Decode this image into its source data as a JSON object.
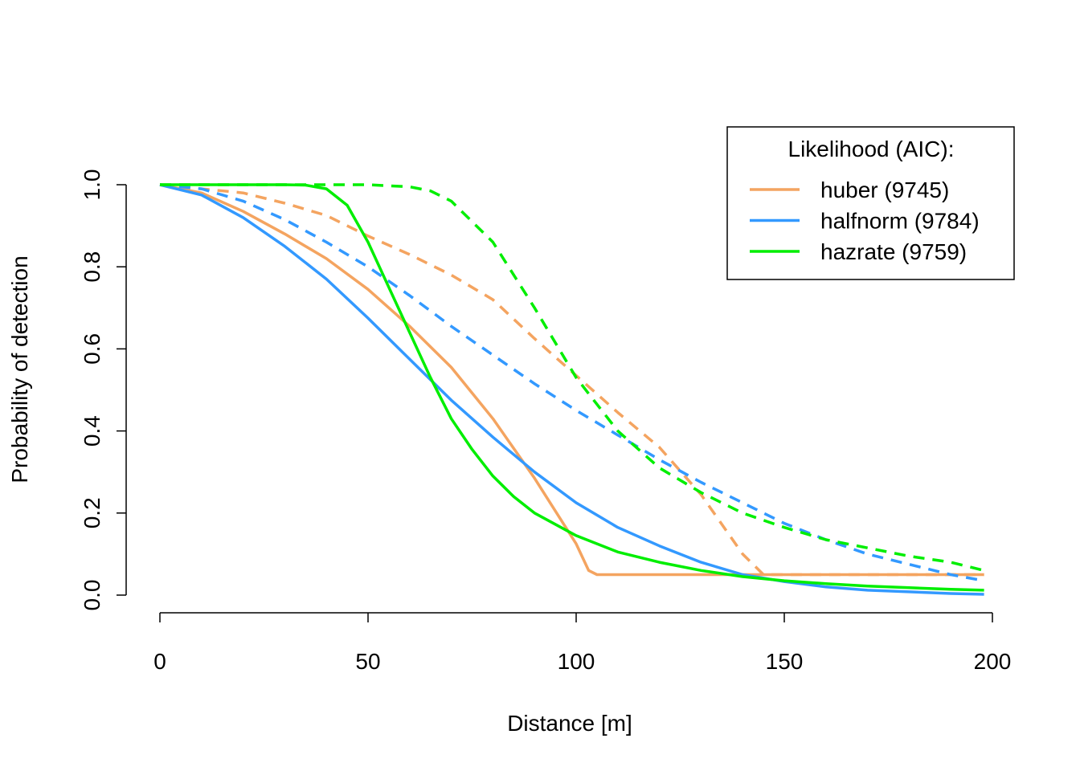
{
  "chart_data": {
    "type": "line",
    "title": "",
    "xlabel": "Distance [m]",
    "ylabel": "Probability of detection",
    "xlim": [
      0,
      200
    ],
    "ylim": [
      0,
      1
    ],
    "xticks": [
      0,
      50,
      100,
      150,
      200
    ],
    "xtick_labels": [
      "0",
      "50",
      "100",
      "150",
      "200"
    ],
    "yticks": [
      0,
      0.2,
      0.4,
      0.6,
      0.8,
      1.0
    ],
    "ytick_labels": [
      "0.0",
      "0.2",
      "0.4",
      "0.6",
      "0.8",
      "1.0"
    ],
    "grid": false,
    "legend": {
      "title": "Likelihood (AIC):",
      "position": "top-right",
      "entries": [
        {
          "label": "huber (9745)",
          "color": "#F4A460"
        },
        {
          "label": "halfnorm (9784)",
          "color": "#3399FF"
        },
        {
          "label": "hazrate (9759)",
          "color": "#00EE00"
        }
      ]
    },
    "series": [
      {
        "name": "huber solid",
        "color": "#F4A460",
        "style": "solid",
        "x": [
          0,
          10,
          20,
          30,
          40,
          50,
          60,
          70,
          80,
          90,
          100,
          103,
          105,
          120,
          140,
          160,
          180,
          198
        ],
        "y": [
          1.0,
          0.98,
          0.935,
          0.88,
          0.82,
          0.745,
          0.655,
          0.555,
          0.43,
          0.285,
          0.125,
          0.06,
          0.05,
          0.05,
          0.05,
          0.05,
          0.05,
          0.05
        ]
      },
      {
        "name": "huber dashed",
        "color": "#F4A460",
        "style": "dashed",
        "x": [
          0,
          10,
          20,
          30,
          40,
          50,
          60,
          70,
          80,
          90,
          100,
          110,
          120,
          130,
          140,
          145,
          160,
          180,
          198
        ],
        "y": [
          1.0,
          0.99,
          0.98,
          0.955,
          0.925,
          0.875,
          0.83,
          0.78,
          0.72,
          0.625,
          0.535,
          0.445,
          0.36,
          0.245,
          0.1,
          0.05,
          0.05,
          0.05,
          0.05
        ]
      },
      {
        "name": "halfnorm solid",
        "color": "#3399FF",
        "style": "solid",
        "x": [
          0,
          10,
          20,
          30,
          40,
          50,
          60,
          70,
          80,
          90,
          100,
          110,
          120,
          130,
          140,
          150,
          160,
          170,
          180,
          190,
          198
        ],
        "y": [
          1.0,
          0.975,
          0.92,
          0.85,
          0.77,
          0.675,
          0.575,
          0.475,
          0.385,
          0.3,
          0.225,
          0.165,
          0.12,
          0.08,
          0.05,
          0.033,
          0.02,
          0.012,
          0.008,
          0.004,
          0.002
        ]
      },
      {
        "name": "halfnorm dashed",
        "color": "#3399FF",
        "style": "dashed",
        "x": [
          0,
          10,
          20,
          30,
          40,
          50,
          60,
          70,
          80,
          90,
          100,
          110,
          120,
          130,
          140,
          150,
          160,
          170,
          180,
          190,
          198
        ],
        "y": [
          1.0,
          0.99,
          0.96,
          0.915,
          0.86,
          0.8,
          0.73,
          0.655,
          0.585,
          0.515,
          0.45,
          0.39,
          0.33,
          0.275,
          0.225,
          0.175,
          0.135,
          0.1,
          0.075,
          0.05,
          0.035
        ]
      },
      {
        "name": "hazrate solid",
        "color": "#00EE00",
        "style": "solid",
        "x": [
          0,
          10,
          20,
          30,
          35,
          40,
          45,
          50,
          55,
          60,
          65,
          70,
          75,
          80,
          85,
          90,
          100,
          110,
          120,
          130,
          140,
          150,
          160,
          170,
          180,
          190,
          198
        ],
        "y": [
          1.0,
          1.0,
          1.0,
          1.0,
          0.999,
          0.99,
          0.95,
          0.86,
          0.75,
          0.64,
          0.53,
          0.43,
          0.355,
          0.29,
          0.24,
          0.2,
          0.145,
          0.105,
          0.08,
          0.06,
          0.045,
          0.035,
          0.028,
          0.022,
          0.018,
          0.014,
          0.012
        ]
      },
      {
        "name": "hazrate dashed",
        "color": "#00EE00",
        "style": "dashed",
        "x": [
          0,
          10,
          20,
          30,
          40,
          50,
          60,
          65,
          70,
          80,
          90,
          100,
          110,
          120,
          130,
          140,
          150,
          160,
          170,
          180,
          190,
          198
        ],
        "y": [
          1.0,
          1.0,
          1.0,
          1.0,
          1.0,
          1.0,
          0.995,
          0.985,
          0.96,
          0.86,
          0.7,
          0.53,
          0.4,
          0.31,
          0.25,
          0.2,
          0.165,
          0.135,
          0.115,
          0.095,
          0.08,
          0.06
        ]
      }
    ]
  }
}
